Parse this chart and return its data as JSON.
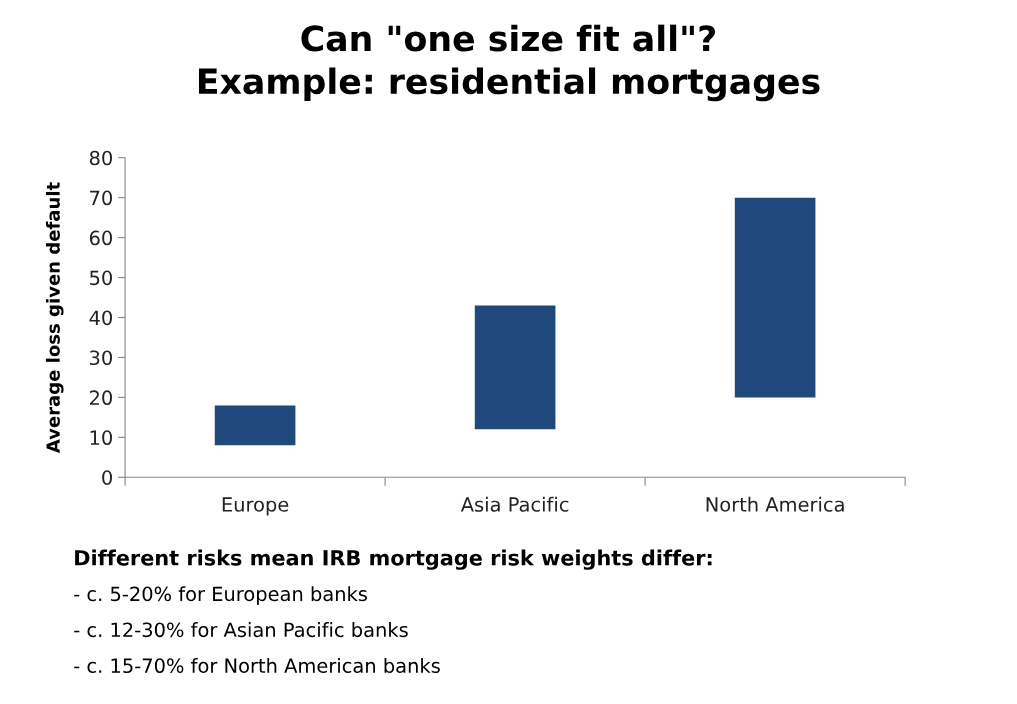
{
  "chart_data": {
    "type": "bar",
    "title": "Can \"one size fit all\"?\nExample: residential mortgages",
    "ylabel": "Average loss given default",
    "categories": [
      "Europe",
      "Asia Pacific",
      "North America"
    ],
    "values": [
      10,
      31,
      50
    ],
    "base": [
      8,
      12,
      20
    ],
    "color": "#1f497d",
    "ylim": [
      0,
      80
    ],
    "yticks": [
      0,
      10,
      20,
      30,
      40,
      50,
      60,
      70,
      80
    ],
    "grid": false,
    "annotations": [
      "Different risks mean IRB mortgage risk weights differ:",
      "- c. 5-20% for European banks",
      "- c. 12-30% for Asian Pacific banks",
      "- c. 15-70% for North American banks"
    ]
  }
}
